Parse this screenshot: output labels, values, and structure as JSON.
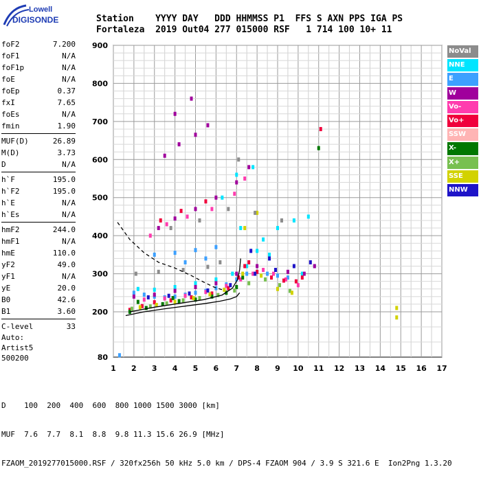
{
  "logo": {
    "line1": "Lowell",
    "line2": "DIGISONDE"
  },
  "header": {
    "row1": "Station    YYYY DAY   DDD HHMMSS P1  FFS S AXN PPS IGA PS",
    "row2": "Fortaleza  2019 Out04 277 015000 RSF   1 714 100 10+ 11"
  },
  "params": {
    "group1": [
      {
        "label": "foF2",
        "value": "7.200"
      },
      {
        "label": "foF1",
        "value": "N/A"
      },
      {
        "label": "foF1p",
        "value": "N/A"
      },
      {
        "label": "foE",
        "value": "N/A"
      },
      {
        "label": "foEp",
        "value": "0.37"
      },
      {
        "label": "fxI",
        "value": "7.65"
      },
      {
        "label": "foEs",
        "value": "N/A"
      },
      {
        "label": "fmin",
        "value": "1.90"
      }
    ],
    "group2": [
      {
        "label": "MUF(D)",
        "value": "26.89"
      },
      {
        "label": "M(D)",
        "value": "3.73"
      },
      {
        "label": "D",
        "value": "N/A"
      }
    ],
    "group3": [
      {
        "label": "h`F",
        "value": "195.0"
      },
      {
        "label": "h`F2",
        "value": "195.0"
      },
      {
        "label": "h`E",
        "value": "N/A"
      },
      {
        "label": "h`Es",
        "value": "N/A"
      }
    ],
    "group4": [
      {
        "label": "hmF2",
        "value": "244.0"
      },
      {
        "label": "hmF1",
        "value": "N/A"
      },
      {
        "label": "hmE",
        "value": "110.0"
      },
      {
        "label": "yF2",
        "value": "49.0"
      },
      {
        "label": "yF1",
        "value": "N/A"
      },
      {
        "label": "yE",
        "value": "20.0"
      },
      {
        "label": "B0",
        "value": "42.6"
      },
      {
        "label": "B1",
        "value": "3.60"
      }
    ],
    "group5": [
      {
        "label": "C-level",
        "value": "33"
      }
    ]
  },
  "auto": {
    "line1": "Auto:",
    "line2": "Artist5",
    "line3": "500200"
  },
  "legend": [
    {
      "label": "NoVal",
      "color": "#8c8c8c"
    },
    {
      "label": "NNE",
      "color": "#00e5ff"
    },
    {
      "label": "E",
      "color": "#3ca0ff"
    },
    {
      "label": "W",
      "color": "#a0009c"
    },
    {
      "label": "Vo-",
      "color": "#ff3cae"
    },
    {
      "label": "Vo+",
      "color": "#f0003c"
    },
    {
      "label": "SSW",
      "color": "#ffb4b4"
    },
    {
      "label": "X-",
      "color": "#007800"
    },
    {
      "label": "X+",
      "color": "#78c050"
    },
    {
      "label": "SSE",
      "color": "#d2d200"
    },
    {
      "label": "NNW",
      "color": "#1e14c8"
    }
  ],
  "footer": {
    "line1": "D    100  200  400  600  800 1000 1500 3000 [km]",
    "line2": "MUF  7.6  7.7  8.1  8.8  9.8 11.3 15.6 26.9 [MHz]",
    "line3": "FZAOM_2019277015000.RSF / 320fx256h 50 kHz 5.0 km / DPS-4 FZAOM 904 / 3.9 S 321.6 E  Ion2Png 1.3.20"
  },
  "chart_data": {
    "type": "scatter",
    "xlim": [
      1,
      17
    ],
    "ylim": [
      80,
      900
    ],
    "x_ticks": [
      1,
      2,
      3,
      4,
      5,
      6,
      7,
      8,
      9,
      10,
      11,
      12,
      13,
      14,
      15,
      16,
      17
    ],
    "y_ticks": [
      80,
      200,
      300,
      400,
      500,
      600,
      700,
      800,
      900
    ],
    "grid": true,
    "series": [
      {
        "color": "#3ca0ff",
        "points": [
          [
            1.3,
            85
          ],
          [
            2.0,
            250
          ],
          [
            2.5,
            245
          ],
          [
            3.0,
            240
          ],
          [
            3.5,
            238
          ],
          [
            4.0,
            240
          ],
          [
            4.5,
            245
          ],
          [
            5.0,
            250
          ],
          [
            5.5,
            255
          ],
          [
            6.0,
            262
          ],
          [
            6.5,
            272
          ],
          [
            7.0,
            285
          ],
          [
            7.5,
            300
          ],
          [
            8.0,
            305
          ],
          [
            8.5,
            300
          ],
          [
            9.0,
            295
          ],
          [
            9.5,
            290
          ],
          [
            3.0,
            350
          ],
          [
            4.0,
            355
          ],
          [
            5.0,
            362
          ],
          [
            6.0,
            370
          ],
          [
            4.5,
            330
          ],
          [
            5.5,
            340
          ]
        ]
      },
      {
        "color": "#00e5ff",
        "points": [
          [
            2.2,
            260
          ],
          [
            3.0,
            258
          ],
          [
            4.0,
            265
          ],
          [
            5.0,
            275
          ],
          [
            6.0,
            285
          ],
          [
            6.8,
            300
          ],
          [
            7.5,
            320
          ],
          [
            8.0,
            360
          ],
          [
            8.3,
            390
          ],
          [
            9.0,
            420
          ],
          [
            9.8,
            440
          ],
          [
            10.5,
            450
          ],
          [
            10.8,
            320
          ],
          [
            10.2,
            300
          ],
          [
            7.2,
            420
          ],
          [
            8.6,
            350
          ],
          [
            6.3,
            500
          ],
          [
            7.0,
            560
          ],
          [
            7.8,
            580
          ]
        ]
      },
      {
        "color": "#a0009c",
        "points": [
          [
            2.0,
            240
          ],
          [
            3.0,
            245
          ],
          [
            4.0,
            255
          ],
          [
            5.0,
            265
          ],
          [
            6.0,
            275
          ],
          [
            7.0,
            300
          ],
          [
            8.0,
            320
          ],
          [
            9.5,
            305
          ],
          [
            10.3,
            300
          ],
          [
            10.8,
            320
          ],
          [
            3.2,
            420
          ],
          [
            4.0,
            445
          ],
          [
            5.0,
            470
          ],
          [
            6.0,
            500
          ],
          [
            7.0,
            540
          ],
          [
            7.6,
            580
          ],
          [
            3.5,
            610
          ],
          [
            4.2,
            640
          ],
          [
            5.0,
            665
          ],
          [
            5.6,
            690
          ],
          [
            4.0,
            720
          ],
          [
            4.8,
            760
          ]
        ]
      },
      {
        "color": "#ff3cae",
        "points": [
          [
            2.5,
            232
          ],
          [
            3.5,
            235
          ],
          [
            4.5,
            242
          ],
          [
            5.5,
            252
          ],
          [
            6.5,
            268
          ],
          [
            7.2,
            285
          ],
          [
            7.8,
            300
          ],
          [
            8.3,
            310
          ],
          [
            8.8,
            300
          ],
          [
            9.4,
            285
          ],
          [
            10.0,
            270
          ],
          [
            2.8,
            400
          ],
          [
            3.6,
            430
          ],
          [
            4.6,
            450
          ],
          [
            5.8,
            470
          ],
          [
            6.9,
            510
          ],
          [
            7.4,
            550
          ]
        ]
      },
      {
        "color": "#f0003c",
        "points": [
          [
            1.8,
            205
          ],
          [
            2.4,
            215
          ],
          [
            3.0,
            225
          ],
          [
            3.8,
            230
          ],
          [
            4.8,
            238
          ],
          [
            5.8,
            248
          ],
          [
            6.6,
            262
          ],
          [
            7.1,
            290
          ],
          [
            7.4,
            320
          ],
          [
            7.6,
            330
          ],
          [
            8.0,
            305
          ],
          [
            8.7,
            290
          ],
          [
            9.3,
            282
          ],
          [
            9.9,
            280
          ],
          [
            10.2,
            290
          ],
          [
            11.1,
            680
          ],
          [
            3.3,
            440
          ],
          [
            4.3,
            465
          ],
          [
            5.5,
            490
          ]
        ]
      },
      {
        "color": "#007800",
        "points": [
          [
            1.8,
            200
          ],
          [
            2.6,
            210
          ],
          [
            3.4,
            220
          ],
          [
            4.2,
            228
          ],
          [
            5.0,
            232
          ],
          [
            5.8,
            240
          ],
          [
            6.5,
            250
          ],
          [
            7.0,
            265
          ],
          [
            7.3,
            290
          ],
          [
            11.0,
            630
          ],
          [
            2.2,
            226
          ],
          [
            3.9,
            236
          ]
        ]
      },
      {
        "color": "#78c050",
        "points": [
          [
            1.9,
            208
          ],
          [
            2.8,
            214
          ],
          [
            3.6,
            222
          ],
          [
            4.4,
            230
          ],
          [
            5.2,
            236
          ],
          [
            6.1,
            244
          ],
          [
            6.9,
            256
          ],
          [
            7.6,
            275
          ],
          [
            8.4,
            285
          ],
          [
            9.1,
            270
          ],
          [
            9.6,
            255
          ]
        ]
      },
      {
        "color": "#d2d200",
        "points": [
          [
            2.3,
            212
          ],
          [
            3.1,
            218
          ],
          [
            4.0,
            226
          ],
          [
            4.9,
            236
          ],
          [
            5.7,
            246
          ],
          [
            6.4,
            258
          ],
          [
            7.3,
            300
          ],
          [
            8.2,
            295
          ],
          [
            9.0,
            260
          ],
          [
            9.7,
            250
          ],
          [
            14.8,
            210
          ],
          [
            14.8,
            185
          ],
          [
            7.4,
            420
          ],
          [
            8.0,
            460
          ]
        ]
      },
      {
        "color": "#1e14c8",
        "points": [
          [
            2.7,
            238
          ],
          [
            3.7,
            242
          ],
          [
            4.7,
            248
          ],
          [
            5.6,
            256
          ],
          [
            6.7,
            270
          ],
          [
            7.9,
            300
          ],
          [
            8.9,
            310
          ],
          [
            9.8,
            320
          ],
          [
            10.6,
            330
          ],
          [
            7.7,
            360
          ],
          [
            8.6,
            340
          ]
        ]
      },
      {
        "color": "#8c8c8c",
        "points": [
          [
            2.1,
            300
          ],
          [
            3.2,
            305
          ],
          [
            4.4,
            310
          ],
          [
            5.6,
            318
          ],
          [
            6.2,
            330
          ],
          [
            3.8,
            420
          ],
          [
            5.2,
            440
          ],
          [
            6.6,
            470
          ],
          [
            7.1,
            600
          ],
          [
            7.9,
            460
          ],
          [
            9.2,
            440
          ]
        ]
      }
    ],
    "curves": [
      {
        "style": "solid",
        "points": [
          [
            1.6,
            190
          ],
          [
            2.5,
            200
          ],
          [
            3.5,
            208
          ],
          [
            4.5,
            215
          ],
          [
            5.5,
            222
          ],
          [
            6.2,
            228
          ],
          [
            6.7,
            234
          ],
          [
            7.0,
            240
          ],
          [
            7.15,
            250
          ]
        ]
      },
      {
        "style": "solid",
        "points": [
          [
            1.8,
            200
          ],
          [
            3,
            212
          ],
          [
            4.2,
            222
          ],
          [
            5.4,
            232
          ],
          [
            6.3,
            244
          ],
          [
            6.8,
            262
          ],
          [
            7.05,
            285
          ],
          [
            7.15,
            310
          ],
          [
            7.2,
            340
          ]
        ]
      },
      {
        "style": "dashed",
        "points": [
          [
            1.2,
            435
          ],
          [
            1.8,
            390
          ],
          [
            2.5,
            355
          ],
          [
            3.2,
            330
          ],
          [
            4.0,
            315
          ],
          [
            4.8,
            295
          ],
          [
            5.4,
            278
          ],
          [
            5.9,
            265
          ],
          [
            6.3,
            258
          ]
        ]
      }
    ]
  }
}
